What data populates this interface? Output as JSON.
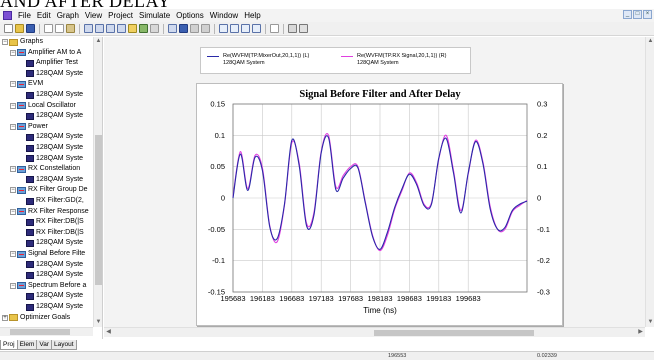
{
  "overlay_title": "AND AFTER DELAY",
  "menu": [
    "File",
    "Edit",
    "Graph",
    "View",
    "Project",
    "Simulate",
    "Options",
    "Window",
    "Help"
  ],
  "window_buttons": [
    "_",
    "□",
    "×"
  ],
  "tree": {
    "items": [
      {
        "label": "Graphs",
        "level": 0,
        "icon": "folder-icon",
        "expander": "−"
      },
      {
        "label": "Amplifier AM to A",
        "level": 1,
        "icon": "graph-icon",
        "expander": "−"
      },
      {
        "label": "Amplifier Test",
        "level": 2,
        "icon": "measurement-icon"
      },
      {
        "label": "128QAM Syste",
        "level": 2,
        "icon": "measurement-icon"
      },
      {
        "label": "EVM",
        "level": 1,
        "icon": "graph-icon",
        "expander": "−"
      },
      {
        "label": "128QAM Syste",
        "level": 2,
        "icon": "measurement-icon"
      },
      {
        "label": "Local Oscillator",
        "level": 1,
        "icon": "graph-icon",
        "expander": "−"
      },
      {
        "label": "128QAM Syste",
        "level": 2,
        "icon": "measurement-icon"
      },
      {
        "label": "Power",
        "level": 1,
        "icon": "graph-icon",
        "expander": "−"
      },
      {
        "label": "128QAM Syste",
        "level": 2,
        "icon": "measurement-icon"
      },
      {
        "label": "128QAM Syste",
        "level": 2,
        "icon": "measurement-icon"
      },
      {
        "label": "128QAM Syste",
        "level": 2,
        "icon": "measurement-icon"
      },
      {
        "label": "RX Constellation",
        "level": 1,
        "icon": "graph-icon",
        "expander": "−"
      },
      {
        "label": "128QAM Syste",
        "level": 2,
        "icon": "measurement-icon"
      },
      {
        "label": "RX Filter Group De",
        "level": 1,
        "icon": "graph-icon",
        "expander": "−"
      },
      {
        "label": "RX Filter:GD(2,",
        "level": 2,
        "icon": "measurement-icon"
      },
      {
        "label": "RX Filter Response",
        "level": 1,
        "icon": "graph-icon",
        "expander": "−"
      },
      {
        "label": "RX Filter:DB(|S",
        "level": 2,
        "icon": "measurement-icon"
      },
      {
        "label": "RX Filter:DB(|S",
        "level": 2,
        "icon": "measurement-icon"
      },
      {
        "label": "128QAM Syste",
        "level": 2,
        "icon": "measurement-icon"
      },
      {
        "label": "Signal Before Filte",
        "level": 1,
        "icon": "graph-icon",
        "expander": "−"
      },
      {
        "label": "128QAM Syste",
        "level": 2,
        "icon": "measurement-icon"
      },
      {
        "label": "128QAM Syste",
        "level": 2,
        "icon": "measurement-icon"
      },
      {
        "label": "Spectrum Before a",
        "level": 1,
        "icon": "graph-icon",
        "expander": "−"
      },
      {
        "label": "128QAM Syste",
        "level": 2,
        "icon": "measurement-icon"
      },
      {
        "label": "128QAM Syste",
        "level": 2,
        "icon": "measurement-icon"
      },
      {
        "label": "Optimizer Goals",
        "level": 0,
        "icon": "folder-icon",
        "expander": "+"
      }
    ]
  },
  "tabs": [
    "Proj",
    "Elem",
    "Var",
    "Layout"
  ],
  "legend": {
    "left_measure": "Re(WVFM(TP.MixerOut,20,1,1)) (L)",
    "left_source": "128QAM System",
    "right_measure": "Re(WVFM(TP.RX Signal,20,1,1)) (R)",
    "right_source": "128QAM System",
    "left_color": "#2a2aa8",
    "right_color": "#e040e0"
  },
  "status": {
    "x_readout": "196553",
    "y_readout": "0.02339"
  },
  "chart_data": {
    "type": "line",
    "title": "Signal Before Filter and After Delay",
    "xlabel": "Time (ns)",
    "ylabel_left": "",
    "ylabel_right": "",
    "xlim": [
      195683,
      200683
    ],
    "ylim_left": [
      -0.15,
      0.15
    ],
    "ylim_right": [
      -0.3,
      0.3
    ],
    "x_ticks": [
      195683,
      196183,
      196683,
      197183,
      197683,
      198183,
      198683,
      199183,
      199683
    ],
    "y_ticks_left": [
      0.15,
      0.1,
      0.05,
      0,
      -0.05,
      -0.1,
      -0.15
    ],
    "y_ticks_left_labels": [
      "0.15",
      "0.1",
      "0.05",
      "0",
      "-0.05",
      "-0.1",
      "-0.15"
    ],
    "y_ticks_right": [
      0.3,
      0.2,
      0.1,
      0,
      -0.1,
      -0.2,
      -0.3
    ],
    "y_ticks_right_labels": [
      "0.3",
      "0.2",
      "0.1",
      "0",
      "-0.1",
      "-0.2",
      "-0.3"
    ],
    "grid": true,
    "x": [
      195683,
      195808,
      195933,
      196058,
      196183,
      196308,
      196433,
      196558,
      196683,
      196808,
      196933,
      197058,
      197183,
      197308,
      197433,
      197558,
      197683,
      197808,
      197933,
      198058,
      198183,
      198308,
      198433,
      198558,
      198683,
      198808,
      198933,
      199058,
      199183,
      199308,
      199433,
      199558,
      199683,
      199808,
      199933,
      200058,
      200183,
      200308,
      200433,
      200558,
      200683
    ],
    "series": [
      {
        "name": "Re(WVFM(TP.MixerOut,20,1,1)) (L)",
        "axis": "left",
        "color": "#2a2aa8",
        "values": [
          0.0,
          0.07,
          0.012,
          0.065,
          0.044,
          -0.046,
          -0.065,
          -0.01,
          0.092,
          0.052,
          -0.044,
          -0.028,
          0.072,
          0.096,
          0.013,
          0.032,
          0.047,
          0.048,
          -0.008,
          -0.062,
          -0.082,
          -0.055,
          -0.015,
          0.015,
          0.038,
          0.021,
          -0.012,
          -0.01,
          0.064,
          0.095,
          0.04,
          -0.024,
          0.04,
          0.09,
          0.055,
          -0.018,
          -0.05,
          -0.047,
          -0.02,
          -0.01,
          -0.005
        ]
      },
      {
        "name": "Re(WVFM(TP.RX Signal,20,1,1)) (R)",
        "axis": "right",
        "color": "#e040e0",
        "values": [
          0.004,
          0.148,
          0.03,
          0.136,
          0.096,
          -0.088,
          -0.14,
          -0.024,
          0.176,
          0.112,
          -0.08,
          -0.048,
          0.148,
          0.2,
          0.036,
          0.072,
          0.1,
          0.1,
          -0.012,
          -0.12,
          -0.168,
          -0.12,
          -0.036,
          0.024,
          0.08,
          0.048,
          -0.02,
          -0.016,
          0.124,
          0.2,
          0.088,
          -0.04,
          0.076,
          0.184,
          0.116,
          -0.028,
          -0.1,
          -0.1,
          -0.044,
          -0.024,
          -0.008
        ]
      }
    ]
  }
}
